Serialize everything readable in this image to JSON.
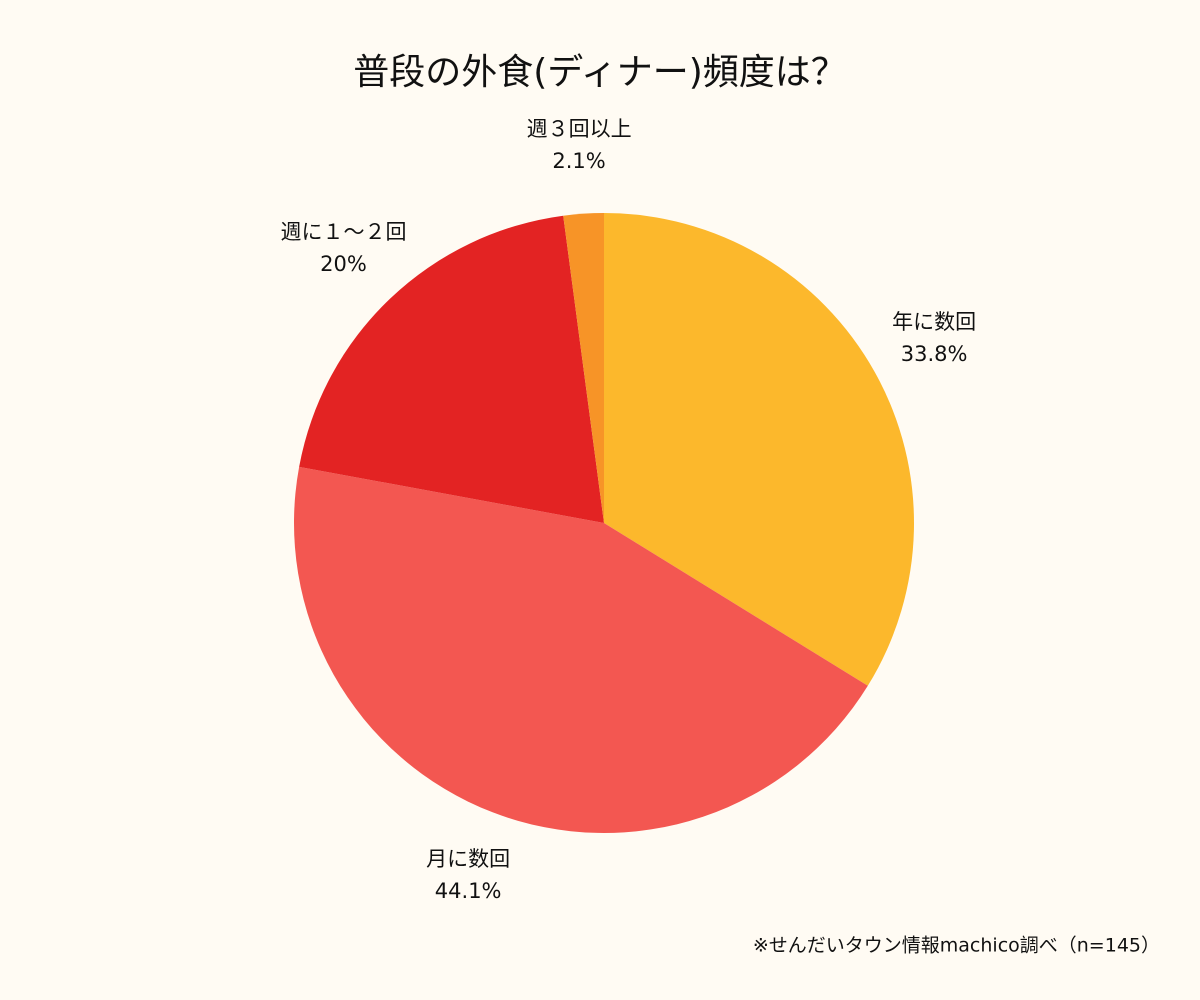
{
  "chart_data": {
    "type": "pie",
    "title": "普段の外食(ディナー)頻度は？",
    "categories": [
      "年に数回",
      "月に数回",
      "週に１～２回",
      "週３回以上"
    ],
    "values": [
      33.8,
      44.1,
      20,
      2.1
    ],
    "value_labels": [
      "33.8%",
      "44.1%",
      "20%",
      "2.1%"
    ],
    "colors": [
      "#fcb82c",
      "#f35751",
      "#e32323",
      "#f79427"
    ],
    "note": "※せんだいタウン情報machico調べ（n=145）"
  }
}
